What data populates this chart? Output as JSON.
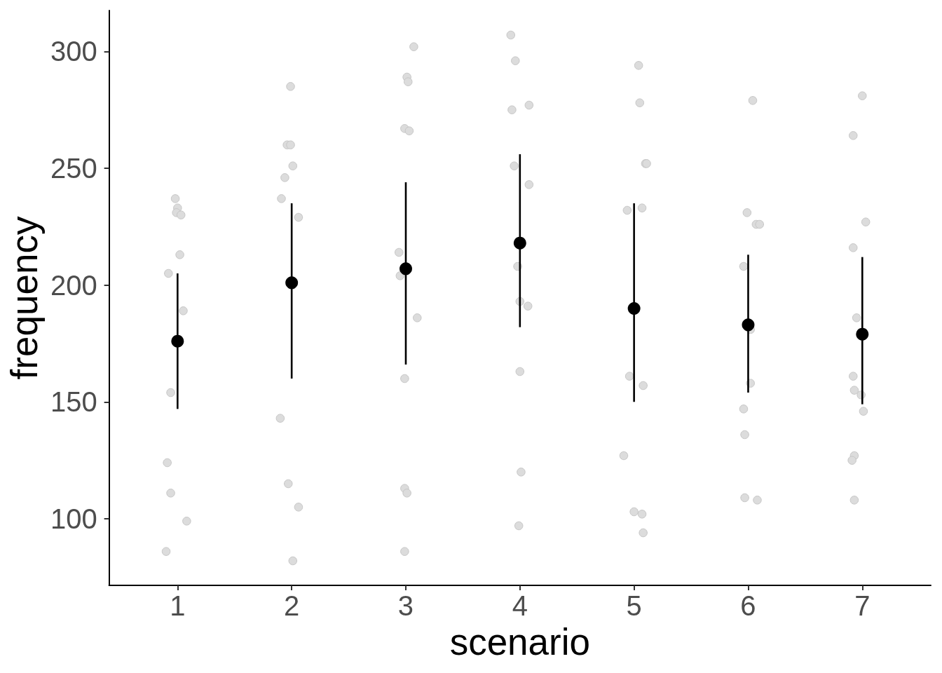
{
  "chart_data": {
    "type": "scatter",
    "xlabel": "scenario",
    "ylabel": "frequency",
    "xlim": [
      0.4,
      7.6
    ],
    "xticks": [
      1,
      2,
      3,
      4,
      5,
      6,
      7
    ],
    "ylim": [
      71.5,
      317.5
    ],
    "yticks": [
      100,
      150,
      200,
      250,
      300
    ],
    "grid": false,
    "marker": "circle",
    "series": [
      {
        "color": "#dcdcdc",
        "x": [
          0.98,
          1.0,
          0.99,
          1.03,
          1.02,
          0.92,
          1.05,
          0.94,
          0.91,
          0.94,
          1.08,
          0.9,
          1.99,
          1.96,
          1.99,
          2.01,
          1.94,
          1.91,
          2.06,
          1.9,
          1.97,
          2.06,
          2.01,
          3.07,
          3.01,
          3.02,
          2.99,
          3.03,
          2.94,
          2.95,
          3.1,
          2.99,
          2.99,
          3.01,
          2.99,
          3.92,
          3.96,
          3.93,
          4.08,
          3.95,
          4.08,
          3.98,
          4.0,
          4.07,
          4.0,
          4.01,
          3.99,
          5.04,
          5.05,
          5.1,
          5.11,
          4.94,
          5.07,
          4.96,
          5.08,
          4.91,
          5.0,
          5.07,
          5.08,
          6.04,
          5.99,
          6.07,
          6.1,
          5.96,
          6.02,
          6.02,
          5.96,
          5.97,
          5.97,
          6.08,
          7.0,
          6.92,
          7.03,
          6.92,
          6.95,
          6.92,
          6.93,
          6.99,
          7.01,
          6.93,
          6.91,
          6.93
        ],
        "values": [
          237,
          233,
          231,
          230,
          213,
          205,
          189,
          154,
          124,
          111,
          99,
          86,
          285,
          260,
          260,
          251,
          246,
          237,
          229,
          143,
          115,
          105,
          82,
          302,
          289,
          287,
          267,
          266,
          214,
          204,
          186,
          160,
          113,
          111,
          86,
          307,
          296,
          275,
          277,
          251,
          243,
          208,
          193,
          191,
          163,
          120,
          97,
          294,
          278,
          252,
          252,
          232,
          233,
          161,
          157,
          127,
          103,
          102,
          94,
          279,
          231,
          226,
          226,
          208,
          181,
          158,
          147,
          136,
          109,
          108,
          281,
          264,
          227,
          216,
          186,
          161,
          155,
          153,
          146,
          127,
          125,
          108
        ]
      },
      {
        "color": "#000000",
        "x": [
          1,
          2,
          3,
          4,
          5,
          6,
          7
        ],
        "values": [
          176,
          201,
          207,
          218,
          190,
          183,
          179
        ],
        "errors": [
          [
            147,
            205
          ],
          [
            160,
            235
          ],
          [
            166,
            244
          ],
          [
            182,
            256
          ],
          [
            150,
            235
          ],
          [
            154,
            213
          ],
          [
            149,
            212
          ]
        ]
      }
    ]
  }
}
